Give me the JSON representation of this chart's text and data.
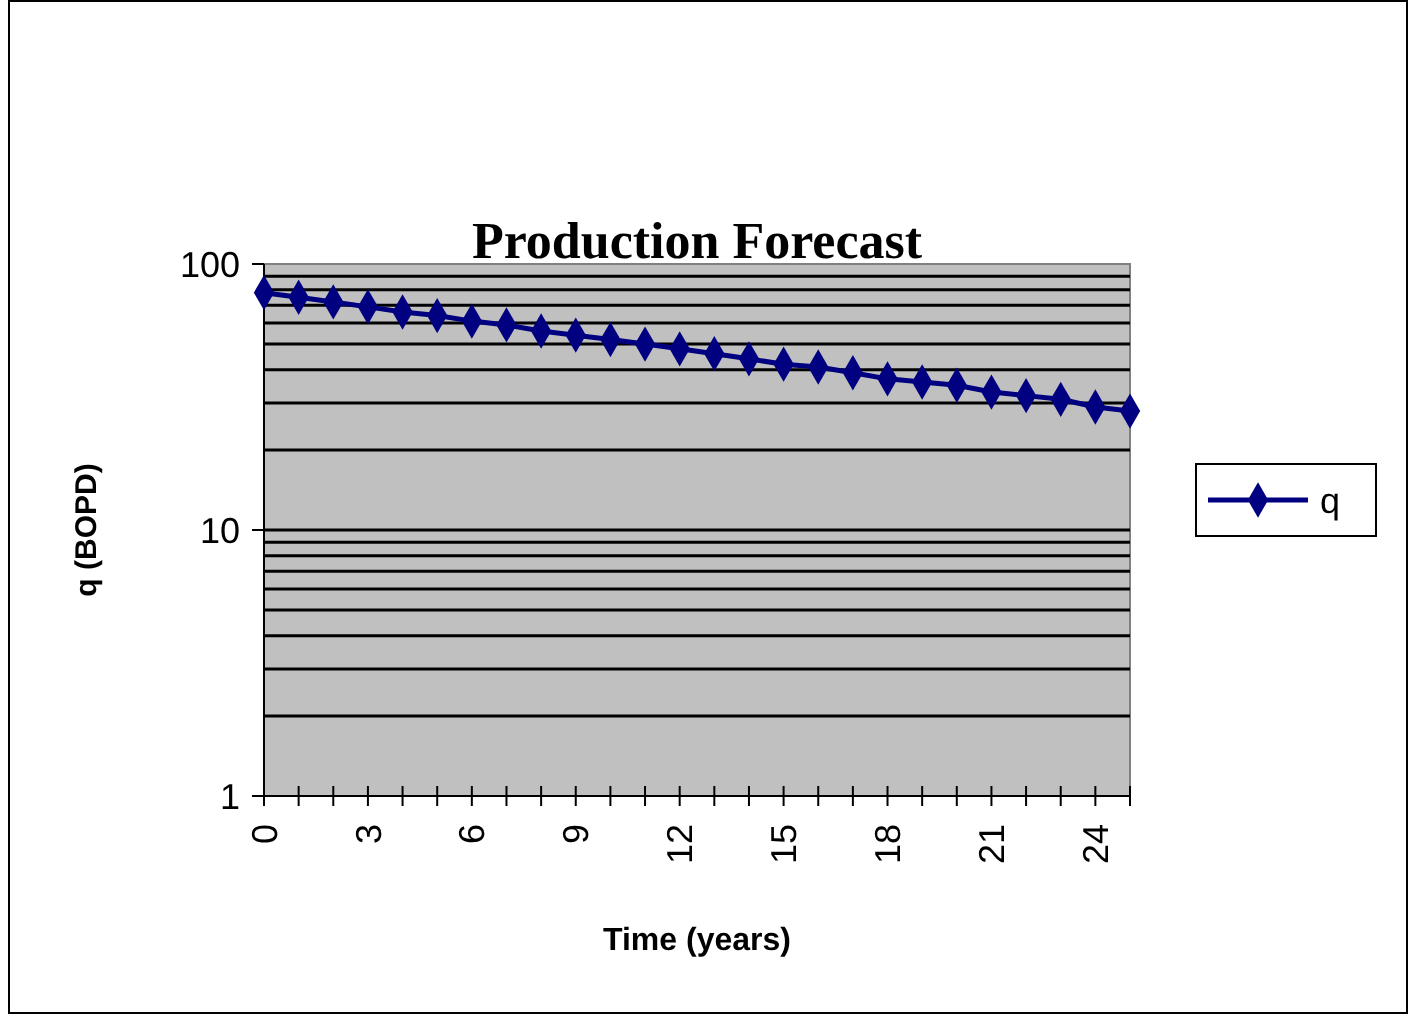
{
  "chart_data": {
    "type": "line",
    "title": "Production Forecast",
    "xlabel": "Time (years)",
    "ylabel": "q (BOPD)",
    "categories": [
      "0",
      null,
      null,
      "3",
      null,
      null,
      "6",
      null,
      null,
      "9",
      null,
      null,
      "12",
      null,
      null,
      "15",
      null,
      null,
      "18",
      null,
      null,
      "21",
      null,
      null,
      "24",
      null
    ],
    "series": [
      {
        "name": "q",
        "color": "#000080",
        "values": [
          78,
          75,
          72,
          69,
          66,
          64,
          61,
          59,
          56,
          54,
          52,
          50,
          48,
          46,
          44,
          42,
          41,
          39,
          37,
          36,
          35,
          33,
          32,
          31,
          29,
          28
        ]
      }
    ],
    "log": "y",
    "ylim": [
      1,
      100
    ],
    "yticks": [
      1,
      10,
      100
    ],
    "grid": "y",
    "legend": "right",
    "marker": "diamond",
    "line_style": "solid"
  }
}
